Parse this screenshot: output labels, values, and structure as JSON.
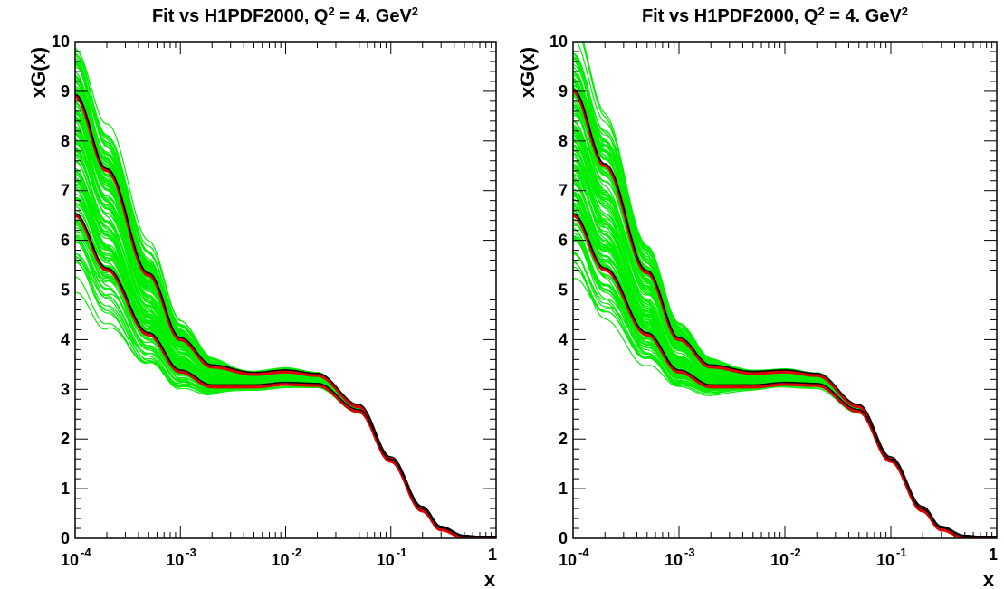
{
  "chart_data": [
    {
      "type": "line",
      "title": "Fit vs H1PDF2000, Q",
      "title_sup": "2",
      "title_mid": " = 4. GeV",
      "title_sup2": "2",
      "xlabel": "x",
      "ylabel": "xG(x)",
      "xscale": "log",
      "xlim": [
        0.0001,
        1
      ],
      "ylim": [
        0,
        10
      ],
      "xticks": [
        {
          "base": "10",
          "exp": "-4",
          "value": 0.0001
        },
        {
          "base": "10",
          "exp": "-3",
          "value": 0.001
        },
        {
          "base": "10",
          "exp": "-2",
          "value": 0.01
        },
        {
          "base": "10",
          "exp": "-1",
          "value": 0.1
        },
        {
          "base": "",
          "exp": "1",
          "value": 1
        }
      ],
      "yticks": [
        "0",
        "1",
        "2",
        "3",
        "4",
        "5",
        "6",
        "7",
        "8",
        "9",
        "10"
      ],
      "colors": {
        "band": "#00ee00",
        "central": "#000000",
        "bounds": "#dd0000"
      },
      "series": [
        {
          "role": "upper",
          "x": [
            0.0001,
            0.0002,
            0.0005,
            0.001,
            0.002,
            0.005,
            0.01,
            0.02,
            0.05,
            0.1,
            0.2,
            0.3,
            0.5,
            0.7,
            1
          ],
          "values": [
            8.9,
            7.4,
            5.3,
            4.0,
            3.45,
            3.3,
            3.35,
            3.28,
            2.65,
            1.6,
            0.6,
            0.2,
            0.02,
            0,
            0
          ]
        },
        {
          "role": "central",
          "x": [
            0.0001,
            0.0002,
            0.0005,
            0.001,
            0.002,
            0.005,
            0.01,
            0.02,
            0.05,
            0.1,
            0.2,
            0.3,
            0.5,
            0.7,
            1
          ],
          "values": [
            8.8,
            7.3,
            5.2,
            3.95,
            3.4,
            3.28,
            3.3,
            3.25,
            2.62,
            1.58,
            0.58,
            0.19,
            0.02,
            0,
            0
          ]
        },
        {
          "role": "lower",
          "x": [
            0.0001,
            0.0002,
            0.0005,
            0.001,
            0.002,
            0.005,
            0.01,
            0.02,
            0.05,
            0.1,
            0.2,
            0.3,
            0.5,
            0.7,
            1
          ],
          "values": [
            6.5,
            5.4,
            4.1,
            3.35,
            3.05,
            3.05,
            3.1,
            3.08,
            2.55,
            1.55,
            0.55,
            0.17,
            0.01,
            0,
            0
          ]
        }
      ]
    },
    {
      "type": "line",
      "title": "Fit vs H1PDF2000, Q",
      "title_sup": "2",
      "title_mid": " = 4. GeV",
      "title_sup2": "2",
      "xlabel": "x",
      "ylabel": "xG(x)",
      "xscale": "log",
      "xlim": [
        0.0001,
        1
      ],
      "ylim": [
        0,
        10
      ],
      "xticks": [
        {
          "base": "10",
          "exp": "-4",
          "value": 0.0001
        },
        {
          "base": "10",
          "exp": "-3",
          "value": 0.001
        },
        {
          "base": "10",
          "exp": "-2",
          "value": 0.01
        },
        {
          "base": "10",
          "exp": "-1",
          "value": 0.1
        },
        {
          "base": "",
          "exp": "1",
          "value": 1
        }
      ],
      "yticks": [
        "0",
        "1",
        "2",
        "3",
        "4",
        "5",
        "6",
        "7",
        "8",
        "9",
        "10"
      ],
      "colors": {
        "band": "#00ee00",
        "central": "#000000",
        "bounds": "#dd0000"
      },
      "series": [
        {
          "role": "upper",
          "x": [
            0.0001,
            0.0002,
            0.0005,
            0.001,
            0.002,
            0.005,
            0.01,
            0.02,
            0.05,
            0.1,
            0.2,
            0.3,
            0.5,
            0.7,
            1
          ],
          "values": [
            9.0,
            7.5,
            5.35,
            4.0,
            3.45,
            3.32,
            3.35,
            3.28,
            2.65,
            1.6,
            0.6,
            0.2,
            0.02,
            0,
            0
          ]
        },
        {
          "role": "central",
          "x": [
            0.0001,
            0.0002,
            0.0005,
            0.001,
            0.002,
            0.005,
            0.01,
            0.02,
            0.05,
            0.1,
            0.2,
            0.3,
            0.5,
            0.7,
            1
          ],
          "values": [
            8.9,
            7.4,
            5.25,
            3.95,
            3.4,
            3.3,
            3.3,
            3.25,
            2.62,
            1.58,
            0.58,
            0.19,
            0.02,
            0,
            0
          ]
        },
        {
          "role": "lower",
          "x": [
            0.0001,
            0.0002,
            0.0005,
            0.001,
            0.002,
            0.005,
            0.01,
            0.02,
            0.05,
            0.1,
            0.2,
            0.3,
            0.5,
            0.7,
            1
          ],
          "values": [
            6.5,
            5.4,
            4.1,
            3.35,
            3.05,
            3.05,
            3.1,
            3.08,
            2.55,
            1.55,
            0.55,
            0.17,
            0.01,
            0,
            0
          ]
        }
      ]
    }
  ]
}
